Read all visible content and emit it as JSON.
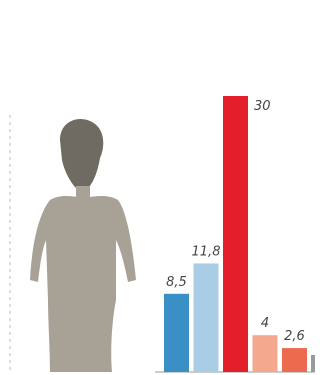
{
  "chart_data": {
    "type": "bar",
    "values": [
      8.5,
      11.8,
      30,
      4,
      2.6
    ],
    "value_labels": [
      "8,5",
      "11,8",
      "30",
      "4",
      "2,6"
    ],
    "colors": [
      "#3a8fc4",
      "#a9cde4",
      "#e3202a",
      "#f4a98f",
      "#ec6b4f"
    ]
  }
}
